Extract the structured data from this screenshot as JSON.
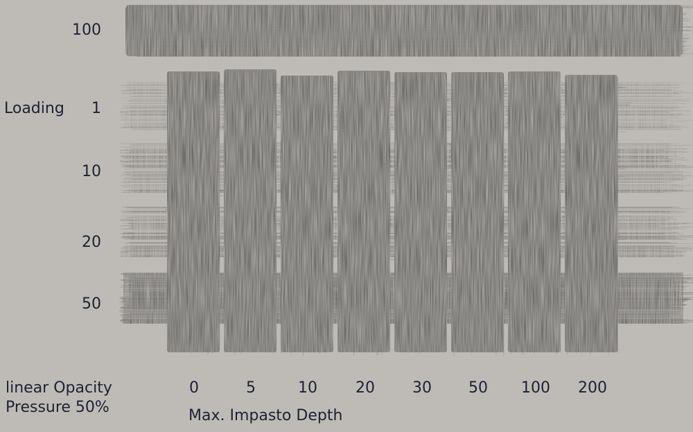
{
  "chart_data": {
    "type": "heatmap",
    "title": "",
    "ylabel": "Loading",
    "xlabel": "Max. Impasto Depth",
    "note_line1": "linear Opacity",
    "note_line2": "Pressure 50%",
    "x_categories": [
      "0",
      "5",
      "10",
      "20",
      "30",
      "50",
      "100",
      "200"
    ],
    "y_categories": [
      "100",
      "1",
      "10",
      "20",
      "50"
    ],
    "colors": {
      "background": "#bebbb6",
      "stroke_red": "#c0101e",
      "stroke_blue": "#102a86",
      "text": "#1c2233"
    },
    "legend": "none",
    "grid": false
  }
}
